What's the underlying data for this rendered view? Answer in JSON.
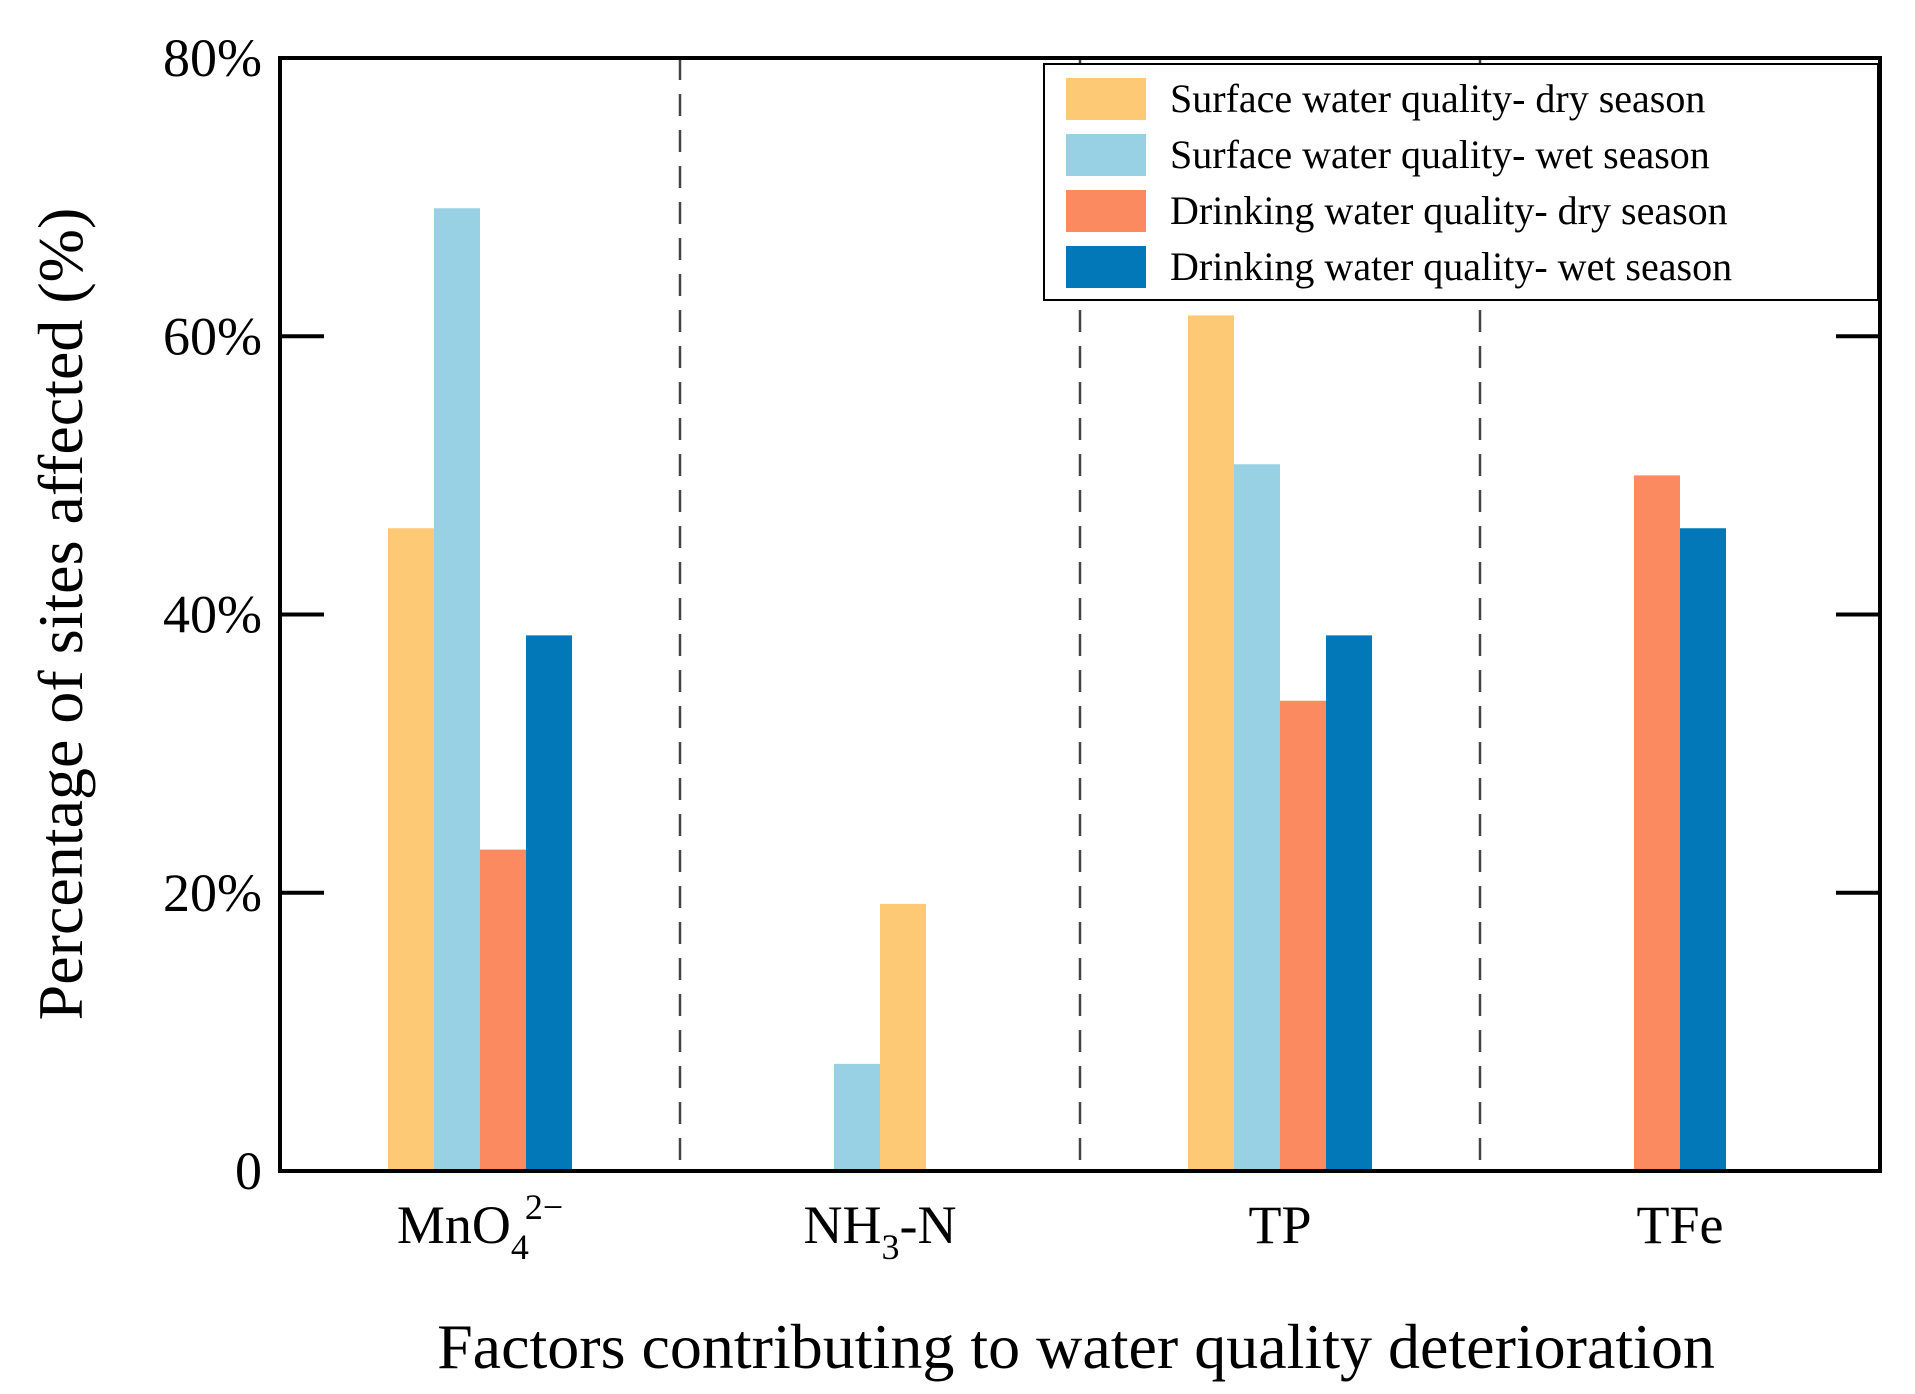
{
  "chart_data": {
    "type": "bar",
    "title": "",
    "xlabel": "Factors contributing to water quality deterioration",
    "ylabel": "Percentage of sites affected (%)",
    "ylim": [
      0,
      80
    ],
    "yticks": [
      {
        "value": 0,
        "label": "0"
      },
      {
        "value": 20,
        "label": "20%"
      },
      {
        "value": 40,
        "label": "40%"
      },
      {
        "value": 60,
        "label": "60%"
      },
      {
        "value": 80,
        "label": "80%"
      }
    ],
    "categories": [
      {
        "label": "MnO",
        "sub": "4",
        "sup": "2−",
        "tail": ""
      },
      {
        "label": "NH",
        "sub": "3",
        "sup": "",
        "tail": "-N"
      },
      {
        "label": "TP",
        "sub": "",
        "sup": "",
        "tail": ""
      },
      {
        "label": "TFe",
        "sub": "",
        "sup": "",
        "tail": ""
      }
    ],
    "legend_position": "top-right",
    "series": [
      {
        "name": "Surface water quality- dry season",
        "color": "#FDC975",
        "values": [
          46.2,
          19.2,
          61.5,
          null
        ]
      },
      {
        "name": "Surface water quality- wet season",
        "color": "#98D0E4",
        "values": [
          69.2,
          7.7,
          50.8,
          null
        ]
      },
      {
        "name": "Drinking water quality- dry season",
        "color": "#FB8A60",
        "values": [
          23.1,
          null,
          33.8,
          50.0
        ]
      },
      {
        "name": "Drinking water quality- wet season",
        "color": "#0378B8",
        "values": [
          38.5,
          null,
          38.5,
          46.2
        ]
      }
    ],
    "bar_slots": [
      [
        0,
        1,
        2,
        3
      ],
      [
        1,
        0
      ],
      [
        0,
        1,
        2,
        3
      ],
      [
        2,
        3
      ]
    ]
  }
}
